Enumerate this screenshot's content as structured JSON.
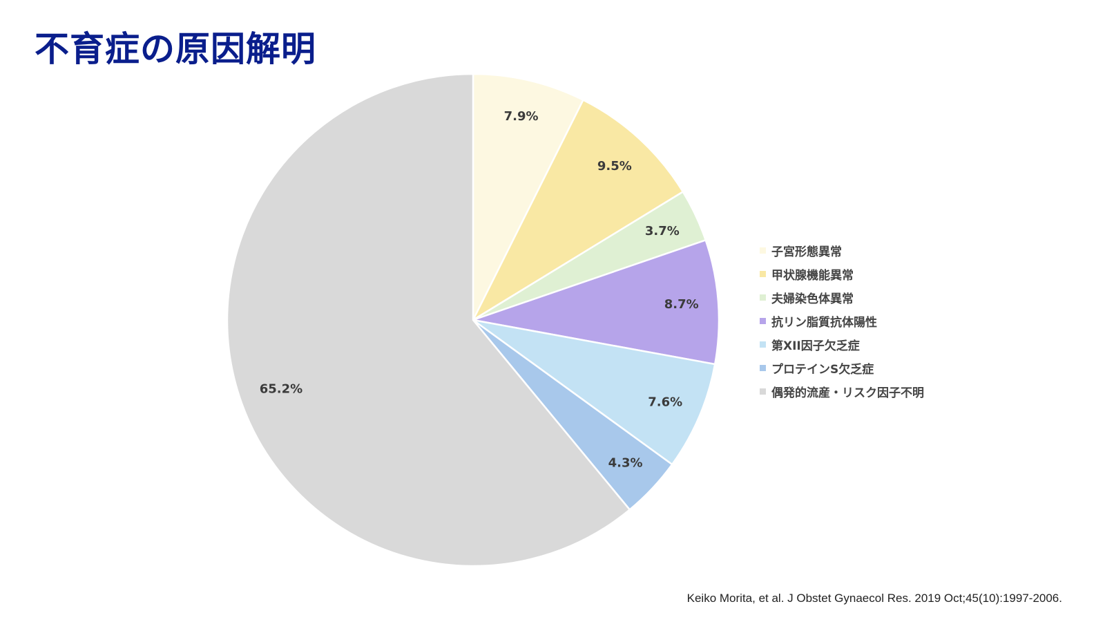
{
  "title": "不育症の原因解明",
  "citation": "Keiko Morita, et al. J Obstet Gynaecol Res. 2019 Oct;45(10):1997-2006.",
  "chart_data": {
    "type": "pie",
    "title": "不育症の原因解明",
    "categories": [
      "子宮形態異常",
      "甲状腺機能異常",
      "夫婦染色体異常",
      "抗リン脂質抗体陽性",
      "第XII因子欠乏症",
      "プロテインS欠乏症",
      "偶発的流産・リスク因子不明"
    ],
    "values": [
      7.9,
      9.5,
      3.7,
      8.7,
      7.6,
      4.3,
      65.2
    ],
    "labels": [
      "7.9%",
      "9.5%",
      "3.7%",
      "8.7%",
      "7.6%",
      "4.3%",
      "65.2%"
    ],
    "colors": [
      "#fdf8e1",
      "#f9e8a4",
      "#dff0d3",
      "#b6a4ea",
      "#c3e2f4",
      "#a8c8eb",
      "#d9d9d9"
    ],
    "start": "12 o'clock",
    "direction": "clockwise",
    "legend_position": "right"
  }
}
